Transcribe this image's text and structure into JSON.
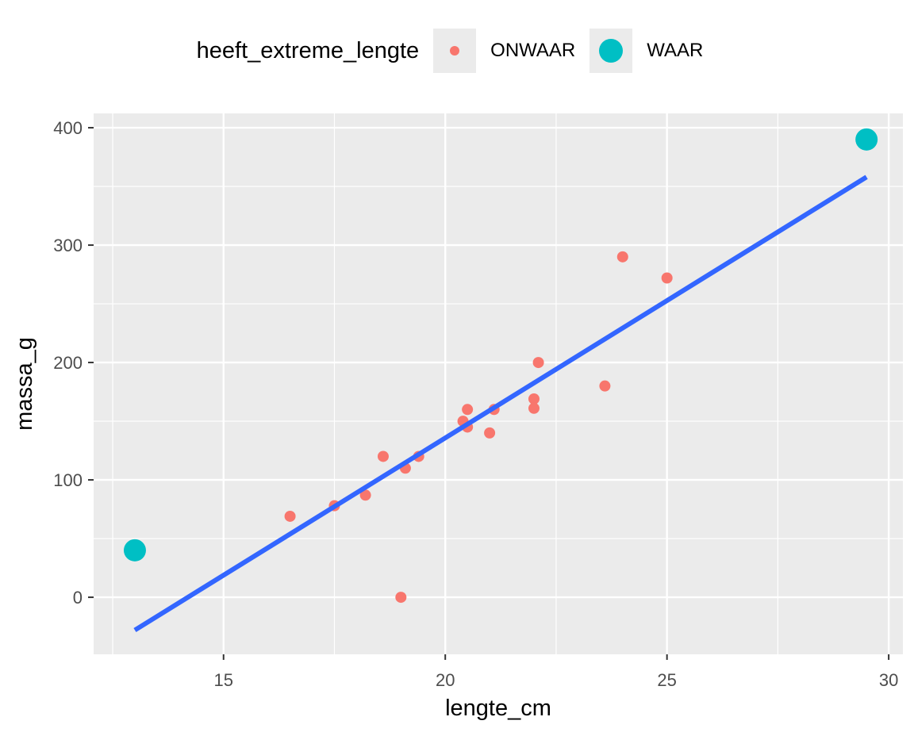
{
  "legend": {
    "title": "heeft_extreme_lengte",
    "items": [
      {
        "label": "ONWAAR",
        "color": "#F8766D",
        "size": 12
      },
      {
        "label": "WAAR",
        "color": "#00BFC4",
        "size": 30
      }
    ]
  },
  "colors": {
    "panel_bg": "#EBEBEB",
    "grid": "#FFFFFF",
    "smooth_line": "#3366FF",
    "onwaar": "#F8766D",
    "waar": "#00BFC4"
  },
  "chart_data": {
    "type": "scatter",
    "title": "",
    "xlabel": "lengte_cm",
    "ylabel": "massa_g",
    "xlim": [
      12.07,
      30.32
    ],
    "ylim": [
      -48.6,
      412.2
    ],
    "x_ticks": [
      15,
      20,
      25,
      30
    ],
    "y_ticks": [
      0,
      100,
      200,
      300,
      400
    ],
    "x_tick_labels": [
      "15",
      "20",
      "25",
      "30"
    ],
    "y_tick_labels": [
      "0",
      "100",
      "200",
      "300",
      "400"
    ],
    "grid": true,
    "legend_position": "top",
    "legend_title": "heeft_extreme_lengte",
    "series": [
      {
        "name": "ONWAAR",
        "color": "#F8766D",
        "points": [
          [
            16.5,
            69
          ],
          [
            17.5,
            78
          ],
          [
            18.2,
            87
          ],
          [
            18.6,
            120
          ],
          [
            19.1,
            110
          ],
          [
            19.4,
            120
          ],
          [
            19.0,
            0
          ],
          [
            20.4,
            150
          ],
          [
            20.5,
            160
          ],
          [
            20.5,
            145
          ],
          [
            21.0,
            140
          ],
          [
            21.1,
            160
          ],
          [
            22.0,
            169
          ],
          [
            22.0,
            161
          ],
          [
            22.1,
            200
          ],
          [
            23.6,
            180
          ],
          [
            24.0,
            290
          ],
          [
            25.0,
            272
          ]
        ]
      },
      {
        "name": "WAAR",
        "color": "#00BFC4",
        "points": [
          [
            13.0,
            40
          ],
          [
            29.5,
            390
          ]
        ]
      }
    ],
    "regression_line": {
      "type": "lm",
      "color": "#3366FF",
      "from": [
        13.0,
        -28
      ],
      "to": [
        29.5,
        358
      ]
    }
  }
}
